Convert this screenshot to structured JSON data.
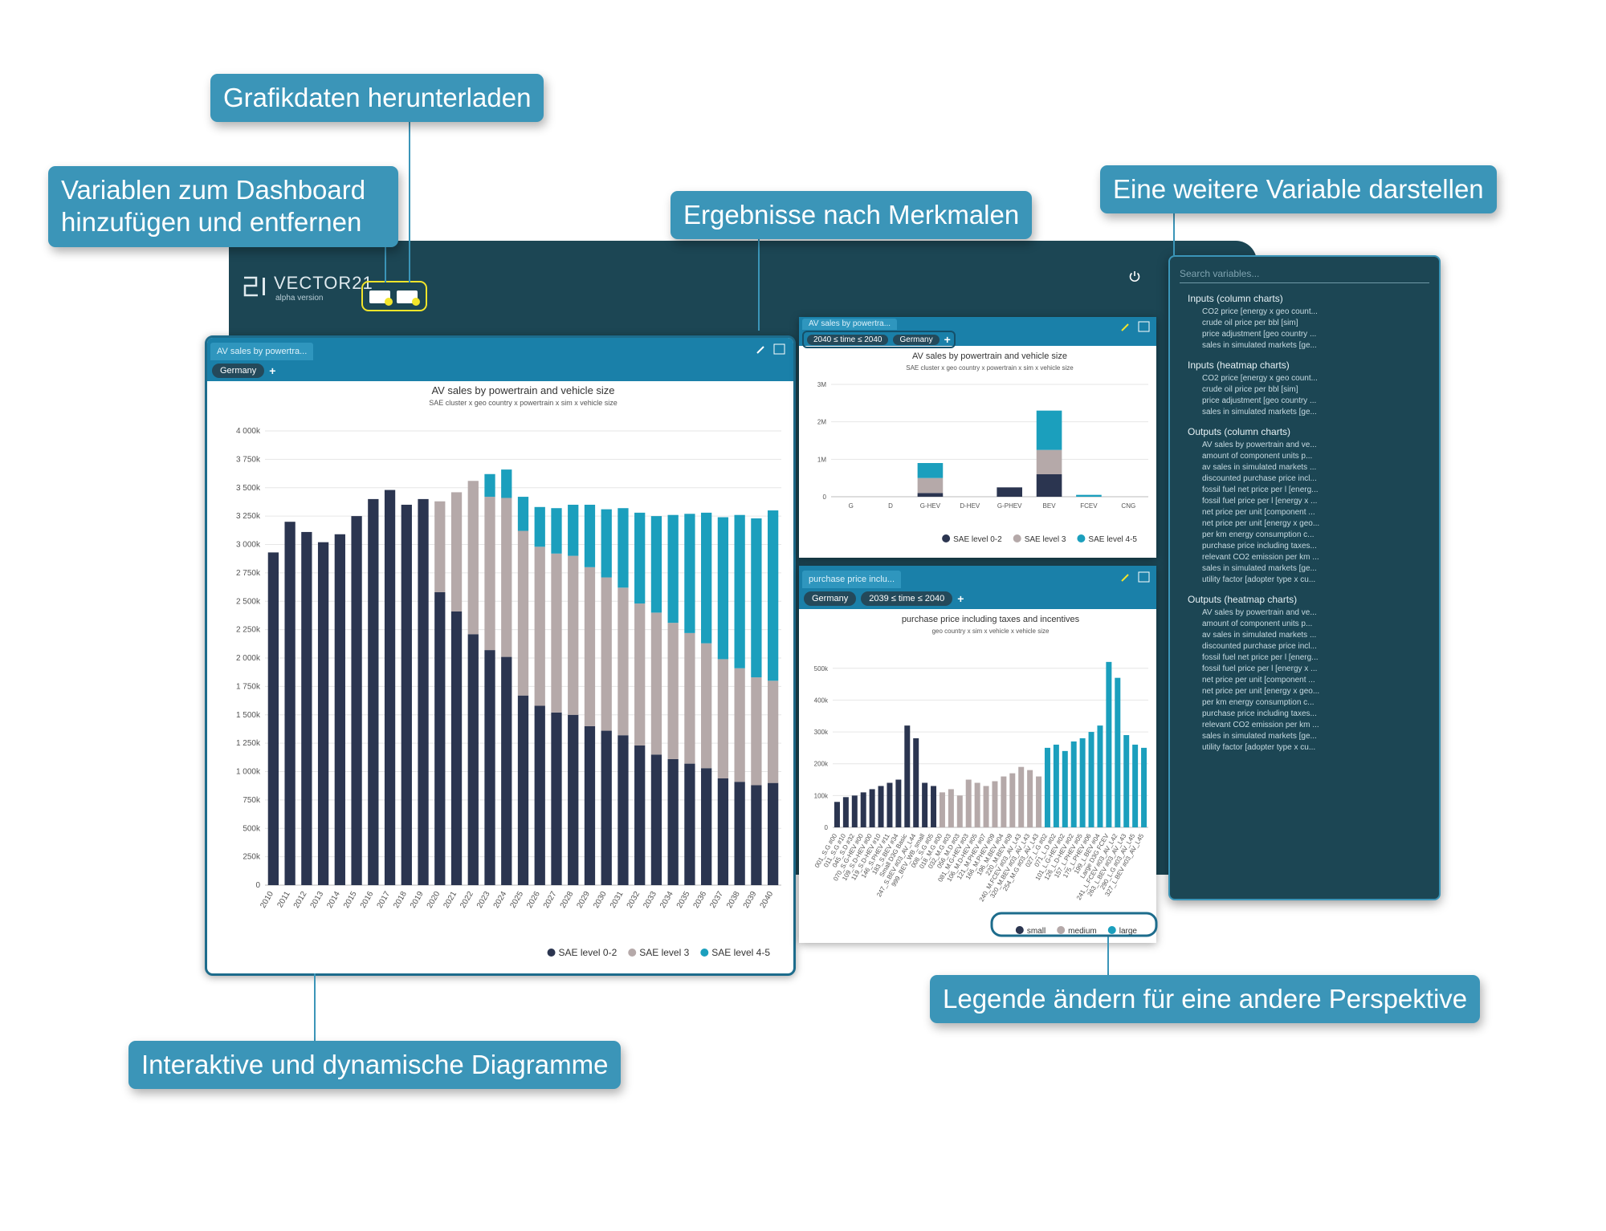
{
  "callouts": {
    "download": "Grafikdaten herunterladen",
    "add_remove": "Variablen zum Dashboard hinzufügen und entfernen",
    "by_feature": "Ergebnisse nach Merkmalen",
    "another_variable": "Eine weitere Variable darstellen",
    "interactive": "Interaktive und dynamische Diagramme",
    "legend": "Legende ändern für eine andere Perspektive"
  },
  "app": {
    "logo": "VECTOR21",
    "version": "alpha version"
  },
  "panels": [
    {
      "tab": "AV sales by powertra...",
      "filters": [
        "Germany"
      ],
      "add": "+"
    },
    {
      "tab": "AV sales by powertra...",
      "filters": [
        "2040 ≤ time ≤ 2040",
        "Germany"
      ],
      "add": "+"
    },
    {
      "tab": "purchase price inclu...",
      "filters": [
        "Germany",
        "2039 ≤ time ≤ 2040"
      ],
      "add": "+"
    }
  ],
  "sidebar": {
    "search": "Search variables...",
    "groups": [
      {
        "heading": "Inputs (column charts)",
        "items": [
          "CO2 price [energy x geo count...",
          "crude oil price per bbl [sim]",
          "price adjustment [geo country ...",
          "sales in simulated markets [ge..."
        ]
      },
      {
        "heading": "Inputs (heatmap charts)",
        "items": [
          "CO2 price [energy x geo count...",
          "crude oil price per bbl [sim]",
          "price adjustment [geo country ...",
          "sales in simulated markets [ge..."
        ]
      },
      {
        "heading": "Outputs (column charts)",
        "items": [
          "AV sales by powertrain and ve...",
          "amount of component units p...",
          "av sales in simulated markets ...",
          "discounted purchase price incl...",
          "fossil fuel net price per l [energ...",
          "fossil fuel price per l [energy x ...",
          "net price per unit [component ...",
          "net price per unit [energy x geo...",
          "per km energy consumption c...",
          "purchase price including taxes...",
          "relevant CO2 emission per km ...",
          "sales in simulated markets [ge...",
          "utility factor [adopter type x cu..."
        ]
      },
      {
        "heading": "Outputs (heatmap charts)",
        "items": [
          "AV sales by powertrain and ve...",
          "amount of component units p...",
          "av sales in simulated markets ...",
          "discounted purchase price incl...",
          "fossil fuel net price per l [energ...",
          "fossil fuel price per l [energy x ...",
          "net price per unit [component ...",
          "net price per unit [energy x geo...",
          "per km energy consumption c...",
          "purchase price including taxes...",
          "relevant CO2 emission per km ...",
          "sales in simulated markets [ge...",
          "utility factor [adopter type x cu..."
        ]
      }
    ]
  },
  "chart_data": [
    {
      "type": "bar",
      "stacked": true,
      "title": "AV sales by powertrain and vehicle size",
      "subtitle": "SAE cluster x geo country x powertrain x sim x vehicle size",
      "categories": [
        "2010",
        "2011",
        "2012",
        "2013",
        "2014",
        "2015",
        "2016",
        "2017",
        "2018",
        "2019",
        "2020",
        "2021",
        "2022",
        "2023",
        "2024",
        "2025",
        "2026",
        "2027",
        "2028",
        "2029",
        "2030",
        "2031",
        "2032",
        "2033",
        "2034",
        "2035",
        "2036",
        "2037",
        "2038",
        "2039",
        "2040"
      ],
      "series": [
        {
          "name": "SAE level 0-2",
          "color": "#2b3550",
          "values": [
            2930000,
            3200000,
            3110000,
            3020000,
            3090000,
            3250000,
            3400000,
            3480000,
            3350000,
            3400000,
            2580000,
            2410000,
            2210000,
            2070000,
            2010000,
            1670000,
            1580000,
            1520000,
            1500000,
            1400000,
            1360000,
            1320000,
            1230000,
            1150000,
            1110000,
            1070000,
            1030000,
            940000,
            910000,
            880000,
            900000
          ]
        },
        {
          "name": "SAE level 3",
          "color": "#b5a9a9",
          "values": [
            0,
            0,
            0,
            0,
            0,
            0,
            0,
            0,
            0,
            0,
            800000,
            1050000,
            1350000,
            1350000,
            1400000,
            1450000,
            1400000,
            1400000,
            1400000,
            1400000,
            1350000,
            1300000,
            1250000,
            1250000,
            1200000,
            1150000,
            1100000,
            1050000,
            1000000,
            950000,
            900000
          ]
        },
        {
          "name": "SAE level 4-5",
          "color": "#1b9fbd",
          "values": [
            0,
            0,
            0,
            0,
            0,
            0,
            0,
            0,
            0,
            0,
            0,
            0,
            0,
            200000,
            250000,
            300000,
            350000,
            400000,
            450000,
            550000,
            600000,
            700000,
            800000,
            850000,
            950000,
            1050000,
            1150000,
            1250000,
            1350000,
            1400000,
            1500000
          ]
        }
      ],
      "ylim": [
        0,
        4000000
      ],
      "yticks": [
        0,
        {
          "value": 250000,
          "label": "250k"
        },
        {
          "value": 500000,
          "label": "500k"
        },
        {
          "value": 750000,
          "label": "750k"
        },
        {
          "value": 1000000,
          "label": "1 000k"
        },
        {
          "value": 1250000,
          "label": "1 250k"
        },
        {
          "value": 1500000,
          "label": "1 500k"
        },
        {
          "value": 1750000,
          "label": "1 750k"
        },
        {
          "value": 2000000,
          "label": "2 000k"
        },
        {
          "value": 2250000,
          "label": "2 250k"
        },
        {
          "value": 2500000,
          "label": "2 500k"
        },
        {
          "value": 2750000,
          "label": "2 750k"
        },
        {
          "value": 3000000,
          "label": "3 000k"
        },
        {
          "value": 3250000,
          "label": "3 250k"
        },
        {
          "value": 3500000,
          "label": "3 500k"
        },
        {
          "value": 3750000,
          "label": "3 750k"
        },
        {
          "value": 4000000,
          "label": "4 000k"
        }
      ],
      "grid": true,
      "legend": "bottom-right"
    },
    {
      "type": "bar",
      "stacked": true,
      "title": "AV sales by powertrain and vehicle size",
      "subtitle": "SAE cluster x geo country x powertrain x sim x vehicle size",
      "categories": [
        "G",
        "D",
        "G-HEV",
        "D-HEV",
        "G-PHEV",
        "BEV",
        "FCEV",
        "CNG"
      ],
      "series": [
        {
          "name": "SAE level 0-2",
          "color": "#2b3550",
          "values": [
            0,
            0,
            100000,
            0,
            250000,
            600000,
            0,
            0
          ]
        },
        {
          "name": "SAE level 3",
          "color": "#b5a9a9",
          "values": [
            0,
            0,
            400000,
            0,
            0,
            650000,
            0,
            0
          ]
        },
        {
          "name": "SAE level 4-5",
          "color": "#1b9fbd",
          "values": [
            0,
            0,
            400000,
            0,
            0,
            1050000,
            50000,
            0
          ]
        }
      ],
      "ylim": [
        0,
        3000000
      ],
      "yticks": [
        0,
        {
          "value": 1000000,
          "label": "1M"
        },
        {
          "value": 2000000,
          "label": "2M"
        },
        {
          "value": 3000000,
          "label": "3M"
        }
      ],
      "grid": true,
      "legend": "bottom-right"
    },
    {
      "type": "bar",
      "stacked": false,
      "title": "purchase price including taxes and incentives",
      "subtitle": "geo country x sim x vehicle x vehicle size",
      "categories": [
        "001_S.G #00",
        "011_S.G #10",
        "045_S.D #32",
        "070_S.G-HEV #00",
        "109_S.D-HEV #00",
        "119_S.D-HEV #10",
        "146_S.PHEV #11",
        "183_S.BEV #34",
        "Small D3G Basic",
        "247_S.BEV #03_AV_L44",
        "999_BEV_WB_small",
        "008_S.G #05",
        "018_M.G #00",
        "032_M.G #03",
        "056_M.D #03",
        "081_M.G-HEV #03",
        "106_M.D-HEV #05",
        "121_M.PHEV #07",
        "166_M.PHEV #09",
        "196_M.BEV #04",
        "220_M.BEV #09",
        "240_M.FCEV #03_AV_L43",
        "320_M.BEV #03_AV_L43",
        "254_M.G #03_AV_L43",
        "027_L.G #02",
        "071_L.D #02",
        "101_L.G-HEV #02",
        "126_L.D-HEV #02",
        "157_L.PHEV #05",
        "175_L.PHEV #06",
        "199_L.BEV #04",
        "Large D3G FCEV",
        "241_L.FCEV #03_AV_L42",
        "263_L.BEV #03_AV_L43",
        "290_L.G #03_AV_L45",
        "327_L.BEV #03_AV_L45"
      ],
      "series": [
        {
          "name": "small",
          "color": "#2b3550",
          "values": [
            80000,
            95000,
            100000,
            110000,
            120000,
            130000,
            140000,
            150000,
            320000,
            280000,
            140000,
            130000,
            null,
            null,
            null,
            null,
            null,
            null,
            null,
            null,
            null,
            null,
            null,
            null,
            null,
            null,
            null,
            null,
            null,
            null,
            null,
            null,
            null,
            null,
            null,
            null
          ]
        },
        {
          "name": "medium",
          "color": "#b5a9a9",
          "values": [
            null,
            null,
            null,
            null,
            null,
            null,
            null,
            null,
            null,
            null,
            null,
            null,
            110000,
            120000,
            100000,
            150000,
            140000,
            130000,
            145000,
            160000,
            170000,
            190000,
            180000,
            160000,
            null,
            null,
            null,
            null,
            null,
            null,
            null,
            null,
            null,
            null,
            null,
            null
          ]
        },
        {
          "name": "large",
          "color": "#1b9fbd",
          "values": [
            null,
            null,
            null,
            null,
            null,
            null,
            null,
            null,
            null,
            null,
            null,
            null,
            null,
            null,
            null,
            null,
            null,
            null,
            null,
            null,
            null,
            null,
            null,
            null,
            250000,
            260000,
            240000,
            270000,
            280000,
            300000,
            320000,
            520000,
            470000,
            290000,
            260000,
            250000
          ]
        }
      ],
      "ylim": [
        0,
        560000
      ],
      "yticks": [
        0,
        {
          "value": 100000,
          "label": "100k"
        },
        {
          "value": 200000,
          "label": "200k"
        },
        {
          "value": 300000,
          "label": "300k"
        },
        {
          "value": 400000,
          "label": "400k"
        },
        {
          "value": 500000,
          "label": "500k"
        }
      ],
      "grid": true,
      "legend": "bottom-right"
    }
  ]
}
